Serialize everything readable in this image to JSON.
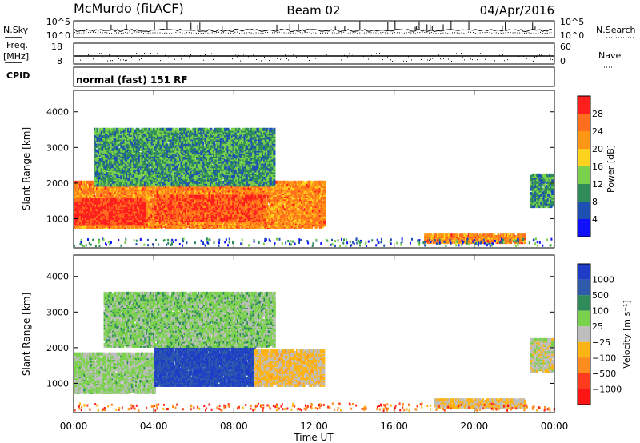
{
  "header": {
    "station": "McMurdo (fitACF)",
    "beam": "Beam 02",
    "date": "04/Apr/2016"
  },
  "noise_panel": {
    "left_label": "N.Sky",
    "right_label": "N.Search",
    "left_ticks": [
      "10^5",
      "10^0"
    ],
    "right_ticks": [
      "10^5",
      "10^0"
    ]
  },
  "freq_panel": {
    "left_label_1": "Freq.",
    "left_label_2": "[MHz]",
    "left_ticks": [
      "18",
      "8"
    ],
    "right_label": "Nave",
    "right_ticks": [
      "60",
      "0"
    ]
  },
  "cpid_panel": {
    "label": "CPID",
    "text": "normal (fast) 151 RF"
  },
  "time_axis": {
    "ticks": [
      "00:00",
      "04:00",
      "08:00",
      "12:00",
      "16:00",
      "20:00",
      "00:00"
    ],
    "title": "Time UT"
  },
  "range_axis": {
    "title": "Slant Range [km]",
    "ticks": [
      "1000",
      "2000",
      "3000",
      "4000"
    ]
  },
  "power_colorbar": {
    "title": "Power [dB]",
    "labels": [
      "4",
      "8",
      "12",
      "16",
      "20",
      "24",
      "28"
    ],
    "colors": [
      "#1010ff",
      "#1e50b4",
      "#2d8c5a",
      "#7ad24b",
      "#ffd21e",
      "#ff9614",
      "#ff6e1e",
      "#ff1e1e"
    ]
  },
  "velocity_colorbar": {
    "title": "Velocity [m s⁻¹]",
    "labels": [
      "1000",
      "500",
      "100",
      "25",
      "−25",
      "−100",
      "−500",
      "−1000"
    ],
    "colors": [
      "#1e3cc8",
      "#2d5aaa",
      "#2d8c5a",
      "#7ad24b",
      "#bebebe",
      "#ffb414",
      "#ff8c1e",
      "#ff3c1e",
      "#ff1414"
    ]
  },
  "chart_data": [
    {
      "type": "heatmap",
      "title": "Power [dB]",
      "xlabel": "Time UT",
      "ylabel": "Slant Range [km]",
      "xlim": [
        0,
        24
      ],
      "ylim": [
        180,
        4600
      ],
      "scale_range": [
        0,
        30
      ],
      "regions": [
        {
          "t_start": 0.0,
          "t_end": 12.5,
          "range_start": 700,
          "range_end": 2000,
          "value": 22
        },
        {
          "t_start": 0.0,
          "t_end": 3.5,
          "range_start": 800,
          "range_end": 1500,
          "value": 28
        },
        {
          "t_start": 4.0,
          "t_end": 9.5,
          "range_start": 900,
          "range_end": 1600,
          "value": 26
        },
        {
          "t_start": 1.0,
          "t_end": 10.0,
          "range_start": 1900,
          "range_end": 3500,
          "value": 10
        },
        {
          "t_start": 17.5,
          "t_end": 22.5,
          "range_start": 250,
          "range_end": 500,
          "value": 22
        },
        {
          "t_start": 22.8,
          "t_end": 24.0,
          "range_start": 1300,
          "range_end": 2200,
          "value": 10
        }
      ]
    },
    {
      "type": "heatmap",
      "title": "Velocity [m s⁻¹]",
      "xlabel": "Time UT",
      "ylabel": "Slant Range [km]",
      "xlim": [
        0,
        24
      ],
      "ylim": [
        180,
        4600
      ],
      "scale_range": [
        -1000,
        1000
      ],
      "regions": [
        {
          "t_start": 0.0,
          "t_end": 4.0,
          "range_start": 700,
          "range_end": 1800,
          "value": 150
        },
        {
          "t_start": 4.0,
          "t_end": 9.0,
          "range_start": 900,
          "range_end": 2000,
          "value": 800
        },
        {
          "t_start": 9.0,
          "t_end": 12.5,
          "range_start": 900,
          "range_end": 1900,
          "value": -150
        },
        {
          "t_start": 1.5,
          "t_end": 10.0,
          "range_start": 2000,
          "range_end": 3500,
          "value": 200
        },
        {
          "t_start": 18.0,
          "t_end": 22.5,
          "range_start": 250,
          "range_end": 500,
          "value": -100
        },
        {
          "t_start": 22.8,
          "t_end": 24.0,
          "range_start": 1300,
          "range_end": 2200,
          "value": 0
        }
      ]
    }
  ]
}
